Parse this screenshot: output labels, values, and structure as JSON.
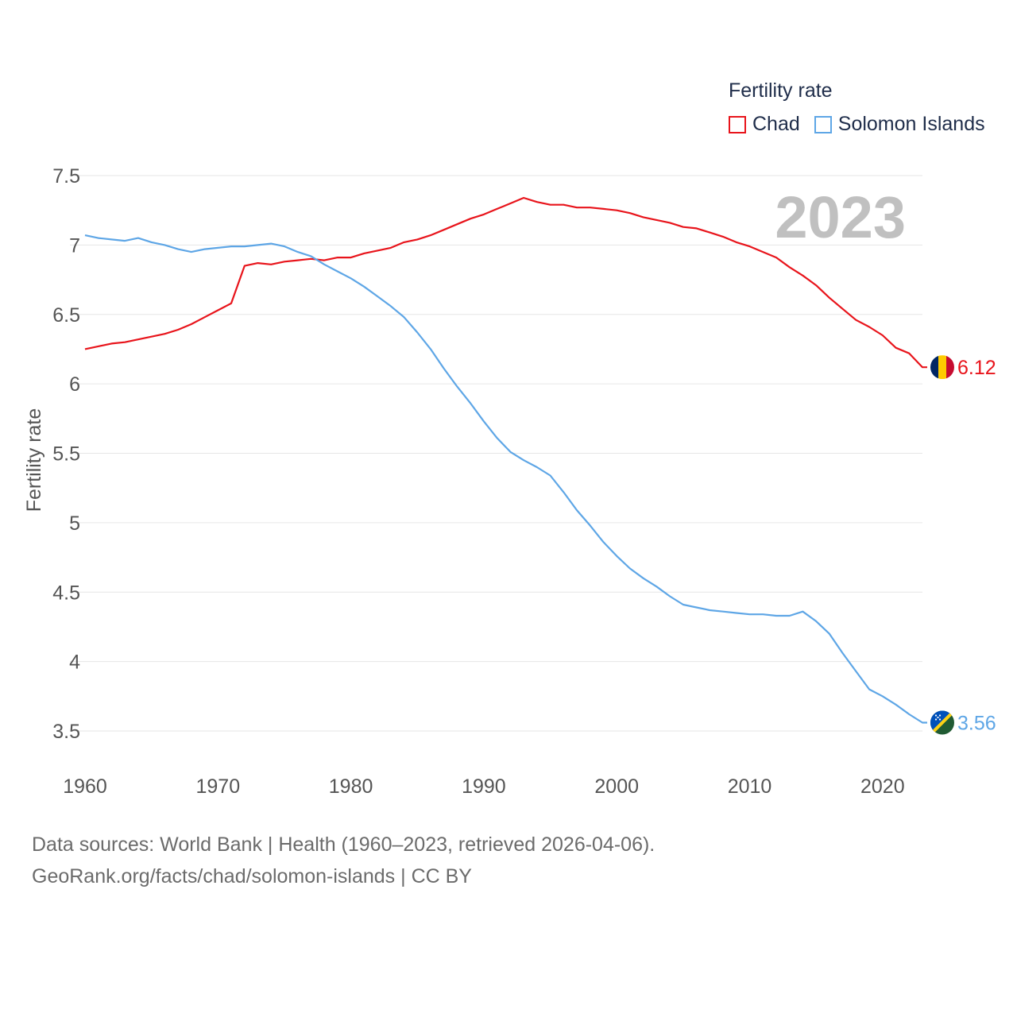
{
  "legend": {
    "title": "Fertility rate",
    "items": [
      {
        "label": "Chad",
        "color": "#e8141b"
      },
      {
        "label": "Solomon Islands",
        "color": "#5ea6e6"
      }
    ]
  },
  "chart_data": {
    "type": "line",
    "title": "Fertility rate",
    "year_label": "2023",
    "ylabel": "Fertility rate",
    "xlabel": "",
    "xlim": [
      1960,
      2024
    ],
    "ylim": [
      3.3,
      7.55
    ],
    "x_ticks": [
      1960,
      1970,
      1980,
      1990,
      2000,
      2010,
      2020
    ],
    "y_ticks": [
      3.5,
      4,
      4.5,
      5,
      5.5,
      6,
      6.5,
      7,
      7.5
    ],
    "x": [
      1960,
      1961,
      1962,
      1963,
      1964,
      1965,
      1966,
      1967,
      1968,
      1969,
      1970,
      1971,
      1972,
      1973,
      1974,
      1975,
      1976,
      1977,
      1978,
      1979,
      1980,
      1981,
      1982,
      1983,
      1984,
      1985,
      1986,
      1987,
      1988,
      1989,
      1990,
      1991,
      1992,
      1993,
      1994,
      1995,
      1996,
      1997,
      1998,
      1999,
      2000,
      2001,
      2002,
      2003,
      2004,
      2005,
      2006,
      2007,
      2008,
      2009,
      2010,
      2011,
      2012,
      2013,
      2014,
      2015,
      2016,
      2017,
      2018,
      2019,
      2020,
      2021,
      2022,
      2023
    ],
    "series": [
      {
        "name": "Chad",
        "color": "#e8141b",
        "end_label": "6.12",
        "values": [
          6.25,
          6.27,
          6.29,
          6.3,
          6.32,
          6.34,
          6.36,
          6.39,
          6.43,
          6.48,
          6.53,
          6.58,
          6.85,
          6.87,
          6.86,
          6.88,
          6.89,
          6.9,
          6.89,
          6.91,
          6.91,
          6.94,
          6.96,
          6.98,
          7.02,
          7.04,
          7.07,
          7.11,
          7.15,
          7.19,
          7.22,
          7.26,
          7.3,
          7.34,
          7.31,
          7.29,
          7.29,
          7.27,
          7.27,
          7.26,
          7.25,
          7.23,
          7.2,
          7.18,
          7.16,
          7.13,
          7.12,
          7.09,
          7.06,
          7.02,
          6.99,
          6.95,
          6.91,
          6.84,
          6.78,
          6.71,
          6.62,
          6.54,
          6.46,
          6.41,
          6.35,
          6.26,
          6.22,
          6.12
        ]
      },
      {
        "name": "Solomon Islands",
        "color": "#5ea6e6",
        "end_label": "3.56",
        "values": [
          7.07,
          7.05,
          7.04,
          7.03,
          7.05,
          7.02,
          7.0,
          6.97,
          6.95,
          6.97,
          6.98,
          6.99,
          6.99,
          7.0,
          7.01,
          6.99,
          6.95,
          6.92,
          6.86,
          6.81,
          6.76,
          6.7,
          6.63,
          6.56,
          6.48,
          6.37,
          6.25,
          6.11,
          5.98,
          5.86,
          5.73,
          5.61,
          5.51,
          5.45,
          5.4,
          5.34,
          5.22,
          5.09,
          4.98,
          4.86,
          4.76,
          4.67,
          4.6,
          4.54,
          4.47,
          4.41,
          4.39,
          4.37,
          4.36,
          4.35,
          4.34,
          4.34,
          4.33,
          4.33,
          4.36,
          4.29,
          4.2,
          4.06,
          3.93,
          3.8,
          3.75,
          3.69,
          3.62,
          3.56
        ]
      }
    ]
  },
  "footer": {
    "line1": "Data sources: World Bank | Health (1960–2023, retrieved 2026-04-06).",
    "line2": "GeoRank.org/facts/chad/solomon-islands | CC BY"
  }
}
